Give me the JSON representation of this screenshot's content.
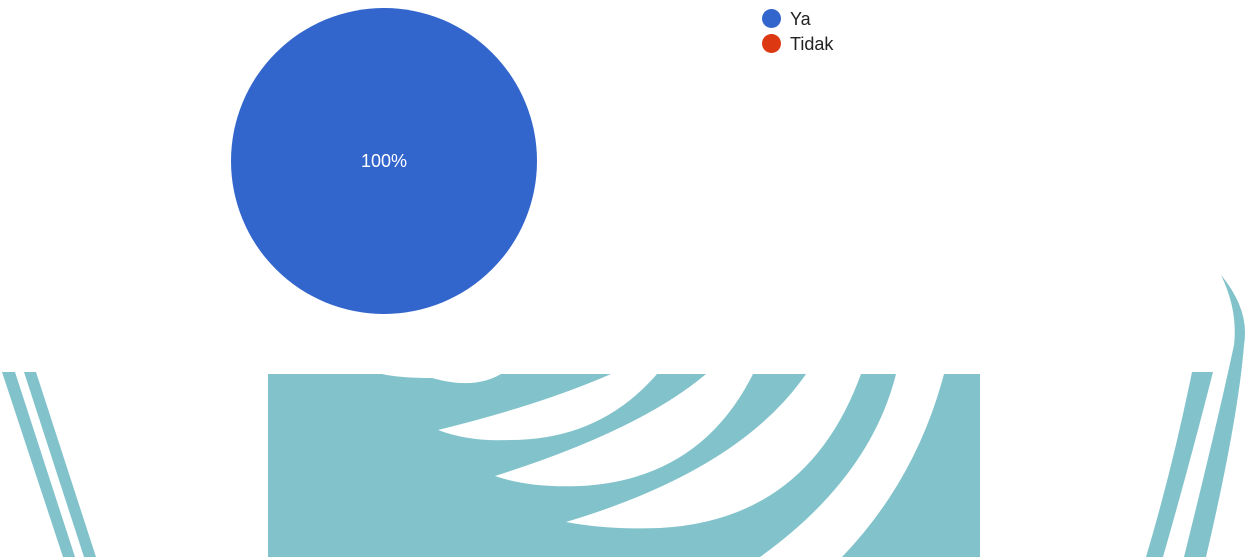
{
  "chart_data": {
    "type": "pie",
    "categories": [
      "Ya",
      "Tidak"
    ],
    "values": [
      100,
      0
    ],
    "colors": [
      "#3366cc",
      "#dc3912"
    ],
    "slice_labels": [
      "100%",
      ""
    ],
    "legend": [
      "Ya",
      "Tidak"
    ],
    "legend_position": "top-right"
  },
  "watermark": {
    "color": "#82c3cb"
  }
}
